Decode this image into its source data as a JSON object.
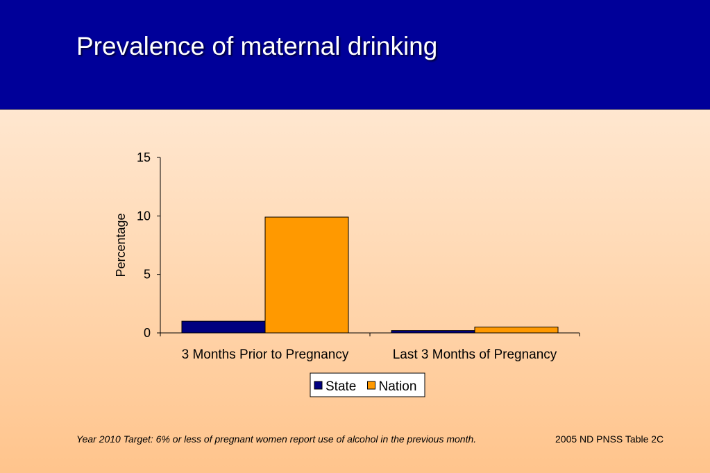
{
  "slide": {
    "title": "Prevalence of maternal drinking",
    "footnote": "Year 2010 Target: 6% or less of pregnant women report use of alcohol in the previous month.",
    "source": "2005 ND PNSS Table 2C"
  },
  "chart_data": {
    "type": "bar",
    "title": "",
    "xlabel": "",
    "ylabel": "Percentage",
    "ylim": [
      0,
      15
    ],
    "yticks": [
      0,
      5,
      10,
      15
    ],
    "categories": [
      "3 Months Prior to Pregnancy",
      "Last 3 Months of Pregnancy"
    ],
    "series": [
      {
        "name": "State",
        "color": "#000080",
        "values": [
          1.0,
          0.2
        ]
      },
      {
        "name": "Nation",
        "color": "#ff9900",
        "values": [
          9.9,
          0.5
        ]
      }
    ],
    "grid": false,
    "legend": "bottom"
  }
}
